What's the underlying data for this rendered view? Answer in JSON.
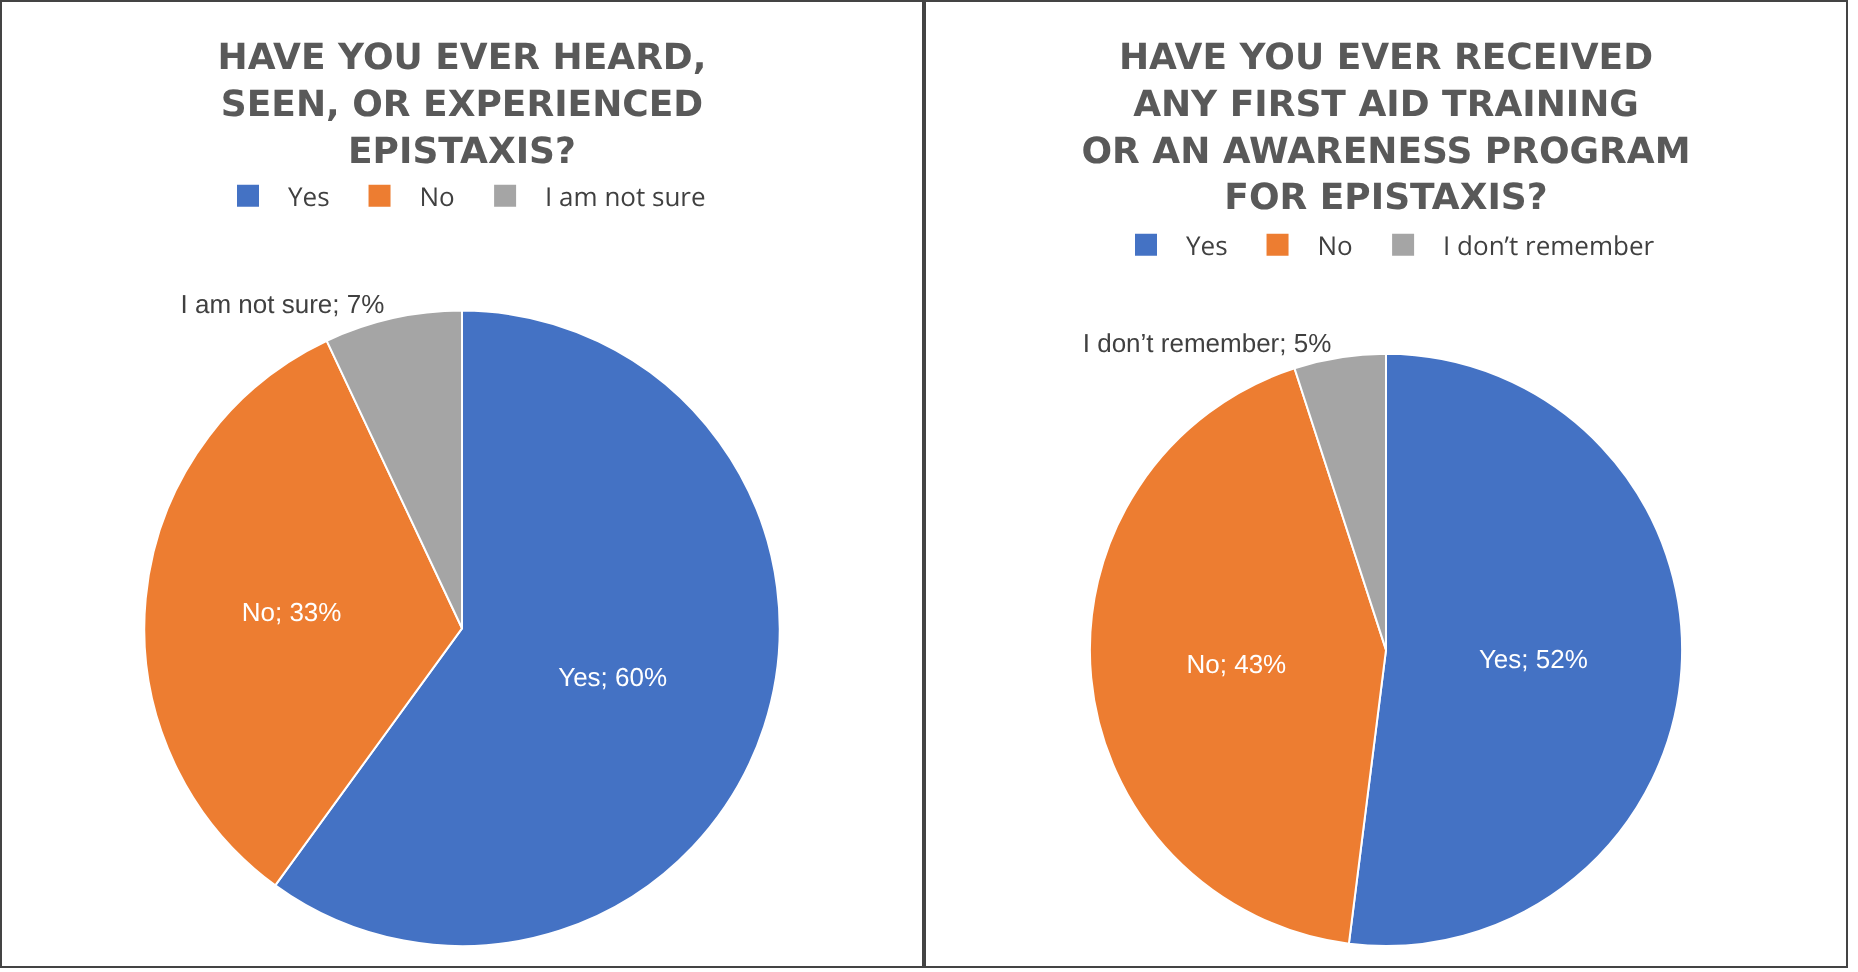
{
  "chart_data": [
    {
      "type": "pie",
      "title": "HAVE YOU EVER HEARD, SEEN, OR EXPERIENCED EPISTAXIS?",
      "categories": [
        "Yes",
        "No",
        "I am not sure"
      ],
      "values": [
        60,
        33,
        7
      ],
      "colors": [
        "#4472c4",
        "#ed7d31",
        "#a5a5a5"
      ],
      "value_labels": [
        "Yes; 60%",
        "No; 33%",
        "I am not sure; 7%"
      ],
      "legend": "top"
    },
    {
      "type": "pie",
      "title": "HAVE YOU EVER RECEIVED ANY FIRST AID TRAINING OR AN AWARENESS PROGRAM FOR EPISTAXIS?",
      "categories": [
        "Yes",
        "No",
        "I don’t remember"
      ],
      "values": [
        52,
        43,
        5
      ],
      "colors": [
        "#4472c4",
        "#ed7d31",
        "#a5a5a5"
      ],
      "value_labels": [
        "Yes; 52%",
        "No; 43%",
        "I don’t remember; 5%"
      ],
      "legend": "top"
    }
  ]
}
